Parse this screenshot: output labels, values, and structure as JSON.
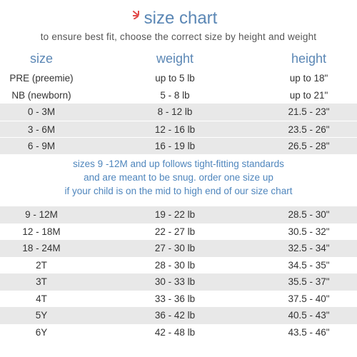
{
  "title": "size chart",
  "subtitle": "to ensure best fit, choose the correct size by height and weight",
  "headers": {
    "size": "size",
    "weight": "weight",
    "height": "height"
  },
  "accent_color": "#5b87b5",
  "burst_color": "#e24b4b",
  "group1": [
    {
      "size": "PRE (preemie)",
      "weight": "up to 5 lb",
      "height": "up to 18\""
    },
    {
      "size": "NB (newborn)",
      "weight": "5 - 8 lb",
      "height": "up to 21\""
    },
    {
      "size": "0 - 3M",
      "weight": "8 - 12 lb",
      "height": "21.5 - 23\""
    },
    {
      "size": "3 - 6M",
      "weight": "12 - 16 lb",
      "height": "23.5 - 26\""
    },
    {
      "size": "6 - 9M",
      "weight": "16 - 19 lb",
      "height": "26.5 - 28\""
    }
  ],
  "note": {
    "line1": "sizes 9 -12M and up follows tight-fitting standards",
    "line2": "and are meant to be snug. order one size up",
    "line3": "if your child is on the mid to high end of our size chart"
  },
  "group2": [
    {
      "size": "9 - 12M",
      "weight": "19 - 22 lb",
      "height": "28.5 - 30\""
    },
    {
      "size": "12 - 18M",
      "weight": "22 - 27 lb",
      "height": "30.5 - 32\""
    },
    {
      "size": "18 - 24M",
      "weight": "27 - 30 lb",
      "height": "32.5 - 34\""
    },
    {
      "size": "2T",
      "weight": "28 - 30 lb",
      "height": "34.5 - 35\""
    },
    {
      "size": "3T",
      "weight": "30 - 33 lb",
      "height": "35.5 - 37\""
    },
    {
      "size": "4T",
      "weight": "33 - 36 lb",
      "height": "37.5 - 40\""
    },
    {
      "size": "5Y",
      "weight": "36 - 42 lb",
      "height": "40.5 - 43\""
    },
    {
      "size": "6Y",
      "weight": "42 - 48 lb",
      "height": "43.5 - 46\""
    }
  ]
}
